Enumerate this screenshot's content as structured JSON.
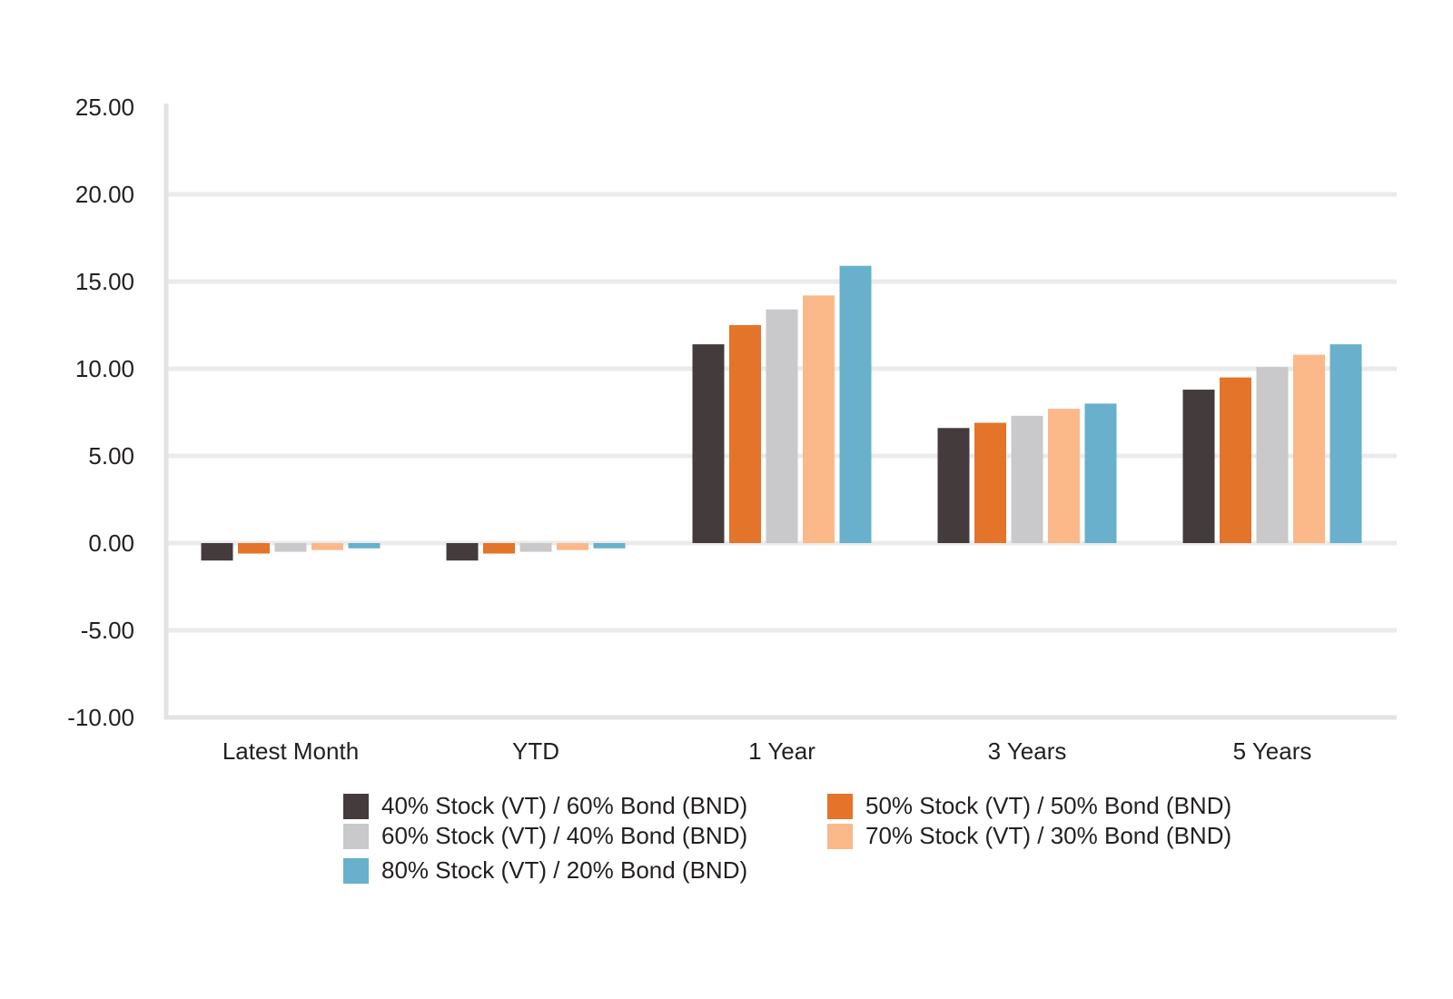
{
  "chart_data": {
    "type": "bar",
    "categories": [
      "Latest Month",
      "YTD",
      "1 Year",
      "3 Years",
      "5 Years"
    ],
    "series": [
      {
        "name": "40% Stock (VT) / 60% Bond (BND)",
        "color": "#433b3c",
        "values": [
          -1.0,
          -1.0,
          11.4,
          6.6,
          8.8
        ]
      },
      {
        "name": "50% Stock (VT) / 50% Bond (BND)",
        "color": "#e37429",
        "values": [
          -0.6,
          -0.6,
          12.5,
          6.9,
          9.5
        ]
      },
      {
        "name": "60% Stock (VT) / 40% Bond (BND)",
        "color": "#c9c9cb",
        "values": [
          -0.5,
          -0.5,
          13.4,
          7.3,
          10.1
        ]
      },
      {
        "name": "70% Stock (VT) / 30% Bond (BND)",
        "color": "#fbb889",
        "values": [
          -0.4,
          -0.4,
          14.2,
          7.7,
          10.8
        ]
      },
      {
        "name": "80% Stock (VT) / 20% Bond (BND)",
        "color": "#68b0cb",
        "values": [
          -0.3,
          -0.3,
          15.9,
          8.0,
          11.4
        ]
      }
    ],
    "ylim": [
      -10,
      25
    ],
    "yticks": [
      25,
      20,
      15,
      10,
      5,
      0,
      -5,
      -10
    ],
    "ytick_labels": [
      "25.00",
      "20.00",
      "15.00",
      "10.00",
      "5.00",
      "0.00",
      "-5.00",
      "-10.00"
    ],
    "grid": true,
    "legend_position": "bottom",
    "title": "",
    "xlabel": "",
    "ylabel": ""
  }
}
